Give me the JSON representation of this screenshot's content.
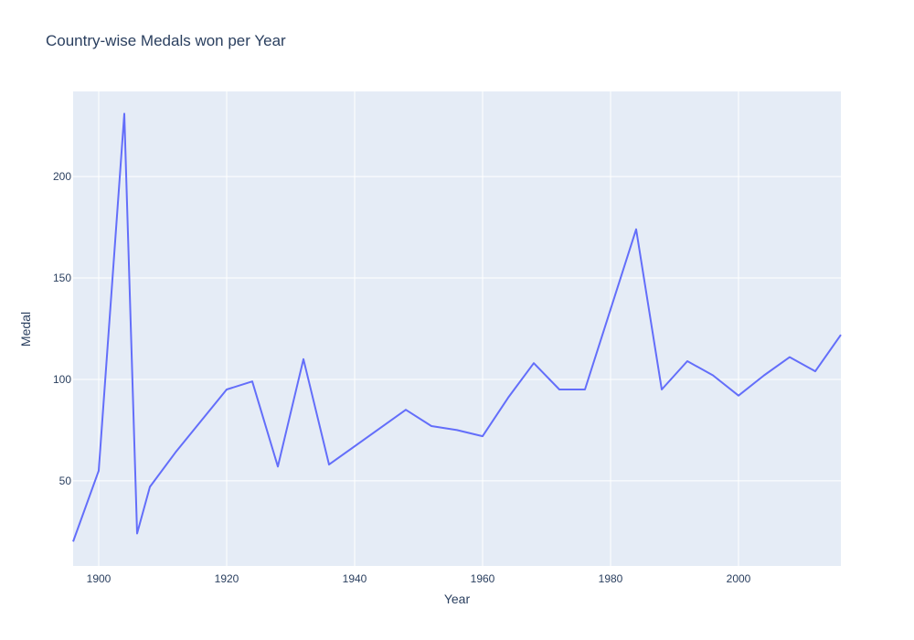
{
  "chart_data": {
    "type": "line",
    "title": "Country-wise Medals won per Year",
    "xlabel": "Year",
    "ylabel": "Medal",
    "xlim": [
      1896,
      2016
    ],
    "ylim": [
      8,
      242
    ],
    "x_ticks": [
      1900,
      1920,
      1940,
      1960,
      1980,
      2000
    ],
    "y_ticks": [
      50,
      100,
      150,
      200
    ],
    "grid": true,
    "legend": "none",
    "colors": {
      "line": "#636efa",
      "plot_bg": "#e5ecf6",
      "grid": "#ffffff",
      "text": "#2a3f5f"
    },
    "series": [
      {
        "x": [
          1896,
          1900,
          1904,
          1906,
          1908,
          1912,
          1920,
          1924,
          1928,
          1932,
          1936,
          1948,
          1952,
          1956,
          1960,
          1964,
          1968,
          1972,
          1976,
          1984,
          1988,
          1992,
          1996,
          2000,
          2004,
          2008,
          2012,
          2016
        ],
        "values": [
          20,
          55,
          231,
          24,
          47,
          64,
          95,
          99,
          57,
          110,
          58,
          85,
          77,
          75,
          72,
          91,
          108,
          95,
          95,
          174,
          95,
          109,
          102,
          92,
          102,
          111,
          104,
          122
        ]
      }
    ]
  }
}
